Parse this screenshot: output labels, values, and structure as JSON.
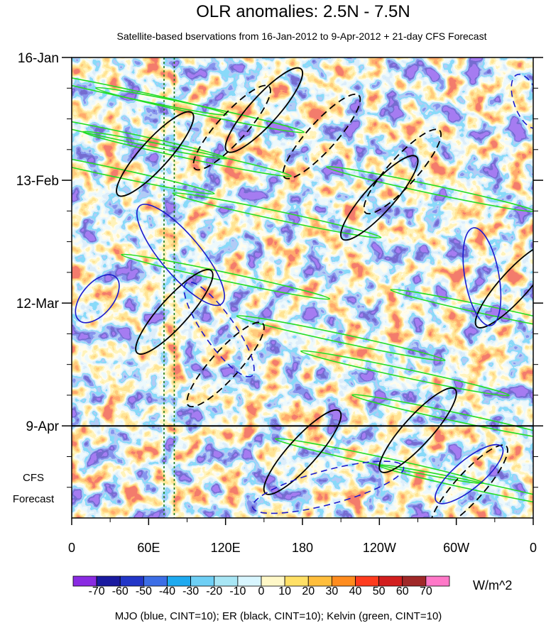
{
  "chart_data": {
    "type": "heatmap",
    "title": "OLR anomalies: 2.5N - 7.5N",
    "subtitle": "Satellite-based bservations from 16-Jan-2012 to 9-Apr-2012 + 21-day CFS Forecast",
    "x_tick_labels": [
      "0",
      "60E",
      "120E",
      "180",
      "120W",
      "60W",
      "0"
    ],
    "x_ticks_deg": [
      0,
      60,
      120,
      180,
      240,
      300,
      360
    ],
    "xlim": [
      0,
      360
    ],
    "y_tick_labels": [
      "16-Jan",
      "13-Feb",
      "12-Mar",
      "9-Apr"
    ],
    "y_ticks_day": [
      0,
      28,
      56,
      84
    ],
    "ylim_day": [
      0,
      105
    ],
    "forecast_start_day": 84,
    "forecast_label_lines": [
      "CFS",
      "Forecast"
    ],
    "colorbar": {
      "levels": [
        -70,
        -60,
        -50,
        -40,
        -30,
        -20,
        -10,
        0,
        10,
        20,
        30,
        40,
        50,
        60,
        70
      ],
      "level_labels": [
        "-70",
        "-60",
        "-50",
        "-40",
        "-30",
        "-20",
        "-10",
        "0",
        "10",
        "20",
        "30",
        "40",
        "50",
        "60",
        "70"
      ],
      "colors": [
        "#8a2be2",
        "#1a1aa0",
        "#2236c8",
        "#3c6ee6",
        "#1eaaf0",
        "#6ecff5",
        "#a8e6f5",
        "#d8f6ff",
        "#fff8c8",
        "#ffe066",
        "#ffbe3c",
        "#ff8c1e",
        "#ff3c1e",
        "#d21e1e",
        "#a02828",
        "#ff78c8"
      ],
      "units": "W/m^2"
    },
    "footer": "MJO (blue, CINT=10); ER (black, CINT=10); Kelvin (green, CINT=10)",
    "contour_colors": {
      "mjo": "#1a1acc",
      "er": "#000000",
      "kelvin": "#22dd22"
    },
    "reference_lon_deg": [
      72,
      80
    ]
  }
}
